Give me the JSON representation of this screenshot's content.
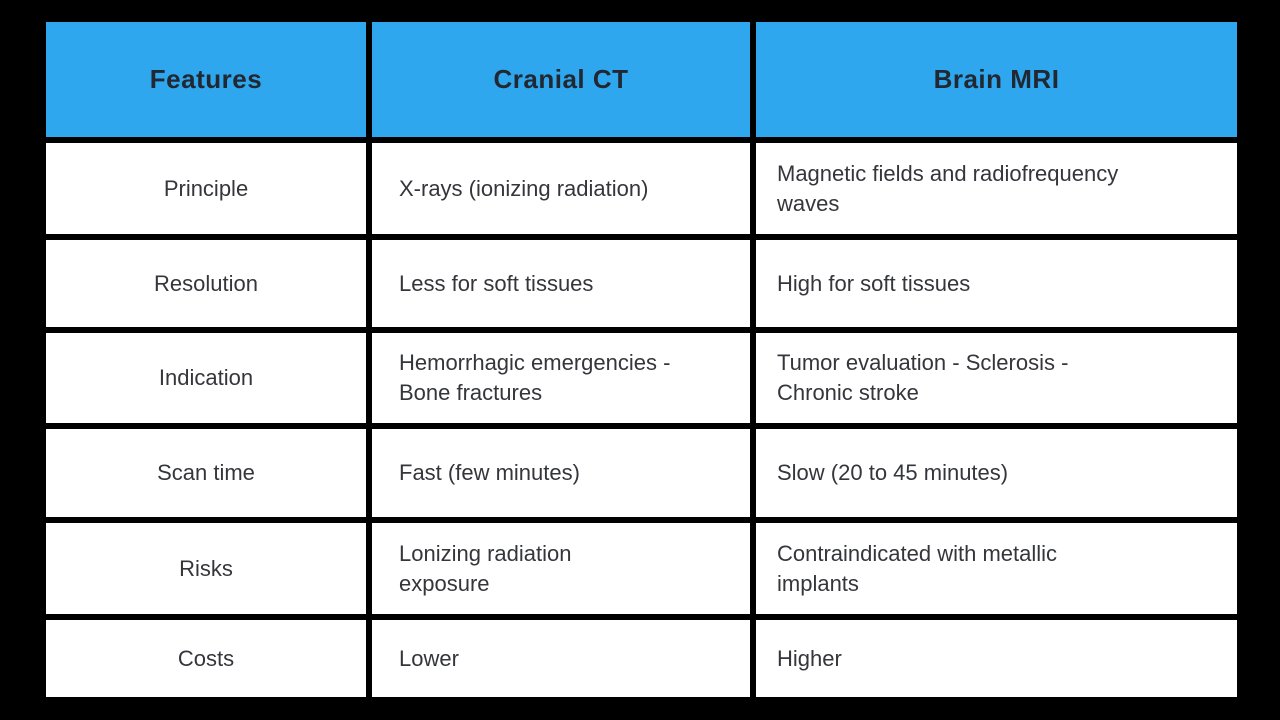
{
  "page": {
    "background_color": "#000000",
    "header_bg_color": "#2EA7EE",
    "header_text_color": "#222831",
    "cell_bg_color": "#ffffff",
    "body_text_color": "#35363b"
  },
  "table": {
    "header": {
      "features": "Features",
      "ct": "Cranial CT",
      "mri": "Brain MRI"
    },
    "rows": [
      {
        "feature": "Principle",
        "ct": "X-rays (ionizing radiation)",
        "mri": "Magnetic fields and radiofrequency\nwaves"
      },
      {
        "feature": "Resolution",
        "ct": "Less for soft tissues",
        "mri": "High for soft tissues"
      },
      {
        "feature": "Indication",
        "ct": "Hemorrhagic emergencies -\nBone fractures",
        "mri": "Tumor evaluation - Sclerosis -\nChronic stroke"
      },
      {
        "feature": "Scan time",
        "ct": "Fast (few minutes)",
        "mri": "Slow (20 to 45 minutes)"
      },
      {
        "feature": "Risks",
        "ct": "Lonizing radiation\nexposure",
        "mri": "Contraindicated with metallic\nimplants"
      },
      {
        "feature": "Costs",
        "ct": "Lower",
        "mri": "Higher"
      }
    ]
  },
  "chart_data": {
    "type": "table",
    "title": "",
    "columns": [
      "Features",
      "Cranial CT",
      "Brain MRI"
    ],
    "rows": [
      [
        "Principle",
        "X-rays (ionizing radiation)",
        "Magnetic fields and radiofrequency waves"
      ],
      [
        "Resolution",
        "Less for soft tissues",
        "High for soft tissues"
      ],
      [
        "Indication",
        "Hemorrhagic emergencies - Bone fractures",
        "Tumor evaluation - Sclerosis - Chronic stroke"
      ],
      [
        "Scan time",
        "Fast (few minutes)",
        "Slow (20 to 45 minutes)"
      ],
      [
        "Risks",
        "Lonizing radiation exposure",
        "Contraindicated with metallic implants"
      ],
      [
        "Costs",
        "Lower",
        "Higher"
      ]
    ],
    "layout": {
      "header_fill": "#2EA7EE",
      "cell_fill": "#ffffff",
      "background": "#000000",
      "grid_gap_color": "#000000"
    }
  }
}
